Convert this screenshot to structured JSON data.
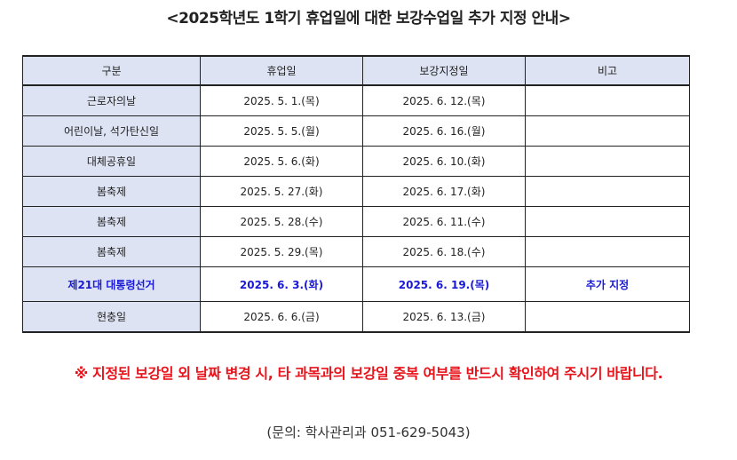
{
  "title": "<2025학년도 1학기 휴업일에 대한 보강수업일 추가 지정 안내>",
  "table": {
    "headers": [
      "구분",
      "휴업일",
      "보강지정일",
      "비고"
    ],
    "rows": [
      {
        "category": "근로자의날",
        "holiday": "2025. 5. 1.(목)",
        "makeup": "2025. 6. 12.(목)",
        "note": ""
      },
      {
        "category": "어린이날, 석가탄신일",
        "holiday": "2025. 5. 5.(월)",
        "makeup": "2025. 6. 16.(월)",
        "note": ""
      },
      {
        "category": "대체공휴일",
        "holiday": "2025. 5. 6.(화)",
        "makeup": "2025. 6. 10.(화)",
        "note": ""
      },
      {
        "category": "봄축제",
        "holiday": "2025. 5. 27.(화)",
        "makeup": "2025. 6. 17.(화)",
        "note": ""
      },
      {
        "category": "봄축제",
        "holiday": "2025. 5. 28.(수)",
        "makeup": "2025. 6. 11.(수)",
        "note": ""
      },
      {
        "category": "봄축제",
        "holiday": "2025. 5. 29.(목)",
        "makeup": "2025. 6. 18.(수)",
        "note": ""
      },
      {
        "category": "제21대 대통령선거",
        "holiday": "2025. 6. 3.(화)",
        "makeup": "2025. 6. 19.(목)",
        "note": "추가 지정"
      },
      {
        "category": "현충일",
        "holiday": "2025. 6. 6.(금)",
        "makeup": "2025. 6. 13.(금)",
        "note": ""
      }
    ]
  },
  "notice": "※ 지정된 보강일 외 날짜 변경 시, 타 과목과의 보강일 중복 여부를 반드시 확인하여 주시기 바랍니다.",
  "contact": "(문의: 학사관리과 051-629-5043)",
  "colors": {
    "header_bg": "#dde3f3",
    "highlight_text": "#1a1ad6",
    "notice_text": "#e8141b"
  }
}
